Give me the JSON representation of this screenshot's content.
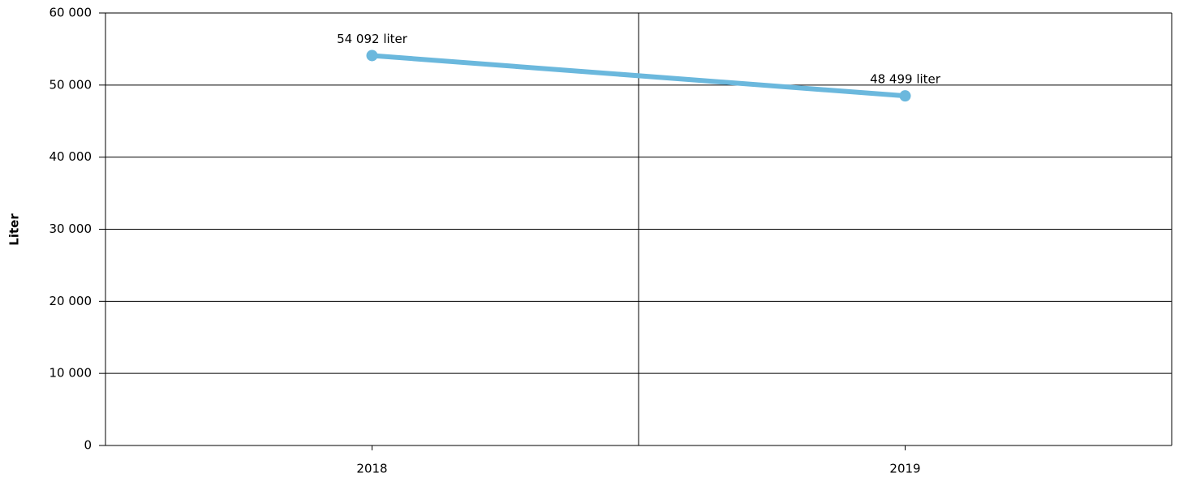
{
  "chart_data": {
    "type": "line",
    "y_label": "Liter",
    "categories": [
      "2018",
      "2019"
    ],
    "series": [
      {
        "name": "Liter",
        "color": "#6bb8dd",
        "values": [
          54092,
          48499
        ],
        "value_labels": [
          "54 092 liter",
          "48 499 liter"
        ]
      }
    ],
    "ylim": [
      0,
      60000
    ],
    "yticks": [
      0,
      {
        "value": 10000,
        "label": "10 000"
      },
      {
        "value": 20000,
        "label": "20 000"
      },
      {
        "value": 30000,
        "label": "30 000"
      },
      {
        "value": 40000,
        "label": "40 000"
      },
      {
        "value": 50000,
        "label": "50 000"
      },
      {
        "value": 60000,
        "label": "60 000"
      }
    ],
    "grid": true
  }
}
